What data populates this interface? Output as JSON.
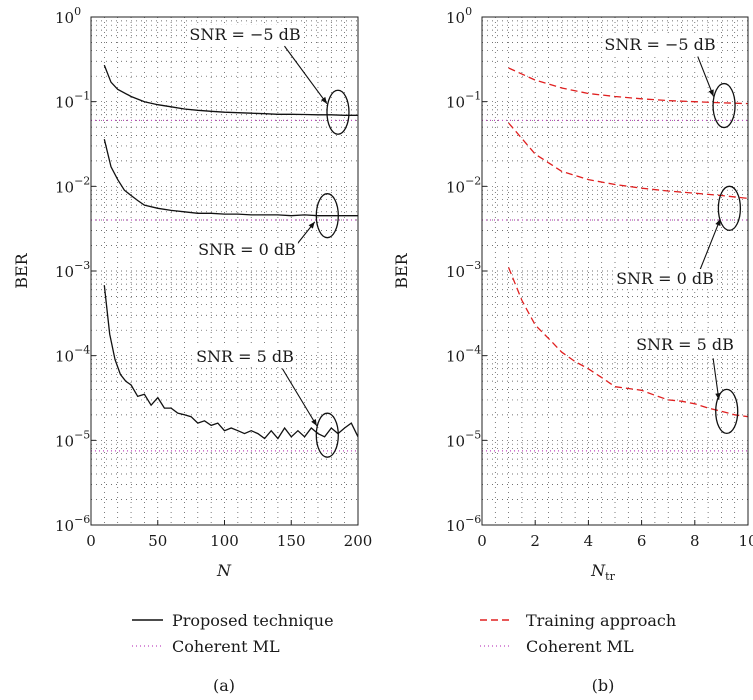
{
  "chart_data": [
    {
      "type": "line",
      "panel_label": "(a)",
      "xlabel": "N",
      "xlabel_sub": "",
      "ylabel": "BER",
      "xlim": [
        0,
        200
      ],
      "ylim": [
        1e-06,
        1
      ],
      "yscale": "log",
      "grid": true,
      "x_ticks": [
        {
          "v": 0,
          "label": "0"
        },
        {
          "v": 50,
          "label": "50"
        },
        {
          "v": 100,
          "label": "100"
        },
        {
          "v": 150,
          "label": "150"
        },
        {
          "v": 200,
          "label": "200"
        }
      ],
      "y_ticks": [
        {
          "exp": 0,
          "base": "10",
          "sup": "0"
        },
        {
          "exp": -1,
          "base": "10",
          "sup": "−1"
        },
        {
          "exp": -2,
          "base": "10",
          "sup": "−2"
        },
        {
          "exp": -3,
          "base": "10",
          "sup": "−3"
        },
        {
          "exp": -4,
          "base": "10",
          "sup": "−4"
        },
        {
          "exp": -5,
          "base": "10",
          "sup": "−5"
        },
        {
          "exp": -6,
          "base": "10",
          "sup": "−6"
        }
      ],
      "legend": [
        {
          "label": "Proposed technique",
          "color": "#111111",
          "dash": "solid"
        },
        {
          "label": "Coherent ML",
          "color": "#c04ac0",
          "dash": "dotted"
        }
      ],
      "series": [
        {
          "name": "Proposed technique",
          "color": "#111111",
          "dash": "solid",
          "snr": "-5",
          "x": [
            10,
            15,
            20,
            30,
            40,
            50,
            60,
            70,
            80,
            90,
            100,
            110,
            120,
            130,
            140,
            150,
            160,
            170,
            180,
            190,
            200
          ],
          "y": [
            0.27,
            0.17,
            0.14,
            0.115,
            0.1,
            0.092,
            0.087,
            0.082,
            0.079,
            0.077,
            0.075,
            0.074,
            0.073,
            0.072,
            0.071,
            0.071,
            0.0705,
            0.07,
            0.07,
            0.069,
            0.069
          ]
        },
        {
          "name": "Proposed technique",
          "color": "#111111",
          "dash": "solid",
          "snr": "0",
          "x": [
            10,
            15,
            20,
            25,
            30,
            35,
            40,
            50,
            60,
            70,
            80,
            90,
            100,
            110,
            120,
            130,
            140,
            150,
            160,
            170,
            180,
            190,
            200
          ],
          "y": [
            0.036,
            0.017,
            0.012,
            0.009,
            0.0078,
            0.0068,
            0.006,
            0.0055,
            0.0052,
            0.005,
            0.0048,
            0.0048,
            0.0047,
            0.0047,
            0.0046,
            0.0046,
            0.0046,
            0.0045,
            0.0046,
            0.0045,
            0.0045,
            0.0045,
            0.0045
          ]
        },
        {
          "name": "Proposed technique",
          "color": "#111111",
          "dash": "solid",
          "snr": "5",
          "x": [
            10,
            14,
            18,
            22,
            26,
            30,
            35,
            40,
            45,
            50,
            55,
            60,
            65,
            70,
            75,
            80,
            85,
            90,
            95,
            100,
            105,
            110,
            115,
            120,
            125,
            130,
            135,
            140,
            145,
            150,
            155,
            160,
            165,
            170,
            175,
            180,
            185,
            190,
            195,
            200
          ],
          "y": [
            0.00068,
            0.00018,
            9e-05,
            6e-05,
            5e-05,
            4.5e-05,
            3.3e-05,
            3.5e-05,
            2.6e-05,
            3.2e-05,
            2.4e-05,
            2.4e-05,
            2.1e-05,
            2e-05,
            1.9e-05,
            1.6e-05,
            1.7e-05,
            1.5e-05,
            1.6e-05,
            1.3e-05,
            1.4e-05,
            1.3e-05,
            1.2e-05,
            1.3e-05,
            1.2e-05,
            1.05e-05,
            1.3e-05,
            1.05e-05,
            1.4e-05,
            1.1e-05,
            1.3e-05,
            1.1e-05,
            1.4e-05,
            1.2e-05,
            1.1e-05,
            1.4e-05,
            1.2e-05,
            1.4e-05,
            1.6e-05,
            1.1e-05
          ]
        },
        {
          "name": "Coherent ML",
          "color": "#c04ac0",
          "dash": "dotted",
          "snr": "-5",
          "x": [
            0,
            200
          ],
          "y": [
            0.06,
            0.06
          ]
        },
        {
          "name": "Coherent ML",
          "color": "#c04ac0",
          "dash": "dotted",
          "snr": "0",
          "x": [
            0,
            200
          ],
          "y": [
            0.004,
            0.004
          ]
        },
        {
          "name": "Coherent ML",
          "color": "#c04ac0",
          "dash": "dotted",
          "snr": "5",
          "x": [
            0,
            200
          ],
          "y": [
            7.5e-06,
            7.5e-06
          ]
        }
      ],
      "annotations": [
        {
          "text": "SNR = −5 dB",
          "target": [
            185,
            0.075
          ]
        },
        {
          "text": "SNR = 0 dB",
          "target": [
            177,
            0.0045
          ]
        },
        {
          "text": "SNR = 5 dB",
          "target": [
            177,
            1.15e-05
          ]
        }
      ]
    },
    {
      "type": "line",
      "panel_label": "(b)",
      "xlabel": "N",
      "xlabel_sub": "tr",
      "ylabel": "BER",
      "xlim": [
        0,
        10
      ],
      "ylim": [
        1e-06,
        1
      ],
      "yscale": "log",
      "grid": true,
      "x_ticks": [
        {
          "v": 0,
          "label": "0"
        },
        {
          "v": 2,
          "label": "2"
        },
        {
          "v": 4,
          "label": "4"
        },
        {
          "v": 6,
          "label": "6"
        },
        {
          "v": 8,
          "label": "8"
        },
        {
          "v": 10,
          "label": "10"
        }
      ],
      "y_ticks": [
        {
          "exp": 0,
          "base": "10",
          "sup": "0"
        },
        {
          "exp": -1,
          "base": "10",
          "sup": "−1"
        },
        {
          "exp": -2,
          "base": "10",
          "sup": "−2"
        },
        {
          "exp": -3,
          "base": "10",
          "sup": "−3"
        },
        {
          "exp": -4,
          "base": "10",
          "sup": "−4"
        },
        {
          "exp": -5,
          "base": "10",
          "sup": "−5"
        },
        {
          "exp": -6,
          "base": "10",
          "sup": "−6"
        }
      ],
      "legend": [
        {
          "label": "Training approach",
          "color": "#e02020",
          "dash": "dashed"
        },
        {
          "label": "Coherent ML",
          "color": "#c04ac0",
          "dash": "dotted"
        }
      ],
      "series": [
        {
          "name": "Training approach",
          "color": "#e02020",
          "dash": "dashed",
          "snr": "-5",
          "x": [
            1,
            2,
            3,
            4,
            5,
            6,
            7,
            8,
            9,
            10
          ],
          "y": [
            0.25,
            0.18,
            0.145,
            0.125,
            0.115,
            0.108,
            0.103,
            0.1,
            0.097,
            0.095
          ]
        },
        {
          "name": "Training approach",
          "color": "#e02020",
          "dash": "dashed",
          "snr": "0",
          "x": [
            1,
            2,
            3,
            4,
            5,
            6,
            7,
            8,
            9,
            10
          ],
          "y": [
            0.056,
            0.024,
            0.015,
            0.012,
            0.0105,
            0.0095,
            0.0088,
            0.0083,
            0.0078,
            0.0072
          ]
        },
        {
          "name": "Training approach",
          "color": "#e02020",
          "dash": "dashed",
          "snr": "5",
          "x": [
            1,
            1.5,
            2,
            2.5,
            3,
            3.5,
            4,
            4.5,
            5,
            5.5,
            6,
            6.5,
            7,
            7.5,
            8,
            8.5,
            9,
            9.5,
            10
          ],
          "y": [
            0.0011,
            0.00045,
            0.00023,
            0.00016,
            0.00011,
            8.5e-05,
            7e-05,
            5.5e-05,
            4.3e-05,
            4.1e-05,
            3.9e-05,
            3.4e-05,
            3e-05,
            2.9e-05,
            2.7e-05,
            2.4e-05,
            2.2e-05,
            2e-05,
            1.9e-05
          ]
        },
        {
          "name": "Coherent ML",
          "color": "#c04ac0",
          "dash": "dotted",
          "snr": "-5",
          "x": [
            0,
            10
          ],
          "y": [
            0.06,
            0.06
          ]
        },
        {
          "name": "Coherent ML",
          "color": "#c04ac0",
          "dash": "dotted",
          "snr": "0",
          "x": [
            0,
            10
          ],
          "y": [
            0.004,
            0.004
          ]
        },
        {
          "name": "Coherent ML",
          "color": "#c04ac0",
          "dash": "dotted",
          "snr": "5",
          "x": [
            0,
            10
          ],
          "y": [
            7.5e-06,
            7.5e-06
          ]
        }
      ],
      "annotations": [
        {
          "text": "SNR = −5 dB",
          "target": [
            9.1,
            0.09
          ]
        },
        {
          "text": "SNR = 0 dB",
          "target": [
            9.3,
            0.0055
          ]
        },
        {
          "text": "SNR = 5 dB",
          "target": [
            9.2,
            2.2e-05
          ]
        }
      ]
    }
  ]
}
